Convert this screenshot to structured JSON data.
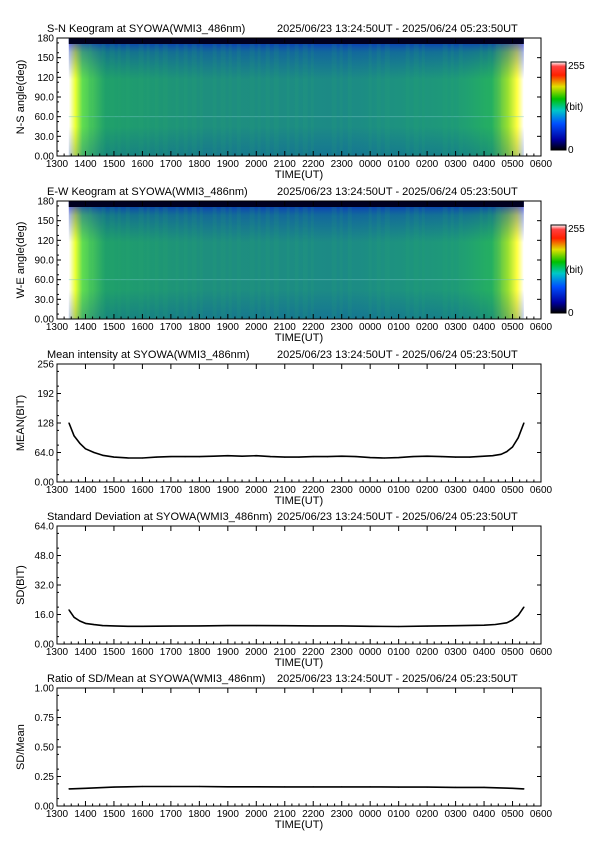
{
  "time_axis": {
    "label": "TIME(UT)",
    "ticks": [
      "1300",
      "1400",
      "1500",
      "1600",
      "1700",
      "1800",
      "1900",
      "2000",
      "2100",
      "2200",
      "2300",
      "0000",
      "0100",
      "0200",
      "0300",
      "0400",
      "0500",
      "0600"
    ]
  },
  "colorbar": {
    "max_label": "255",
    "unit_label": "(bit)",
    "min_label": "0"
  },
  "colors": {
    "line": "#000000",
    "background": "#ffffff"
  },
  "chart_data": [
    {
      "id": "sn",
      "type": "heatmap",
      "title": "S-N Keogram at SYOWA(WMI3_486nm)",
      "period": "2025/06/23 13:24:50UT - 2025/06/24 05:23:50UT",
      "xlabel": "TIME(UT)",
      "ylabel": "N-S angle(deg)",
      "yticks": [
        "0.00",
        "30.0",
        "60.0",
        "90.0",
        "120",
        "150",
        "180"
      ],
      "ylim": [
        0,
        180
      ],
      "xlim": [
        "1300",
        "0600"
      ],
      "data_range": [
        "13:24:50",
        "05:23:50"
      ],
      "colorbar_range": [
        0,
        255
      ],
      "colorbar_unit": "(bit)"
    },
    {
      "id": "ew",
      "type": "heatmap",
      "title": "E-W Keogram at SYOWA(WMI3_486nm)",
      "period": "2025/06/23 13:24:50UT - 2025/06/24 05:23:50UT",
      "xlabel": "TIME(UT)",
      "ylabel": "W-E angle(deg)",
      "yticks": [
        "0.00",
        "30.0",
        "60.0",
        "90.0",
        "120",
        "150",
        "180"
      ],
      "ylim": [
        0,
        180
      ],
      "xlim": [
        "1300",
        "0600"
      ],
      "data_range": [
        "13:24:50",
        "05:23:50"
      ],
      "colorbar_range": [
        0,
        255
      ],
      "colorbar_unit": "(bit)"
    },
    {
      "id": "mean",
      "type": "line",
      "title": "Mean intensity at SYOWA(WMI3_486nm)",
      "period": "2025/06/23 13:24:50UT - 2025/06/24 05:23:50UT",
      "xlabel": "TIME(UT)",
      "ylabel": "MEAN(BIT)",
      "yticks": [
        "0.00",
        "64.0",
        "128",
        "192",
        "256"
      ],
      "ylim": [
        0,
        256
      ],
      "x": [
        13.42,
        13.6,
        13.8,
        14.0,
        14.3,
        14.6,
        15.0,
        15.5,
        16.0,
        16.5,
        17.0,
        17.5,
        18.0,
        18.5,
        19.0,
        19.5,
        20.0,
        20.5,
        21.0,
        21.5,
        22.0,
        22.5,
        23.0,
        23.5,
        24.0,
        24.5,
        25.0,
        25.5,
        26.0,
        26.5,
        27.0,
        27.5,
        28.0,
        28.3,
        28.6,
        28.8,
        29.0,
        29.2,
        29.4
      ],
      "y": [
        128,
        100,
        84,
        72,
        64,
        58,
        54,
        52,
        52,
        54,
        55,
        55,
        55,
        56,
        57,
        56,
        57,
        55,
        54,
        54,
        55,
        55,
        56,
        55,
        53,
        52,
        53,
        55,
        56,
        55,
        54,
        54,
        56,
        57,
        60,
        66,
        76,
        96,
        128
      ]
    },
    {
      "id": "sd",
      "type": "line",
      "title": "Standard Deviation at SYOWA(WMI3_486nm)",
      "period": "2025/06/23 13:24:50UT - 2025/06/24 05:23:50UT",
      "xlabel": "TIME(UT)",
      "ylabel": "SD(BIT)",
      "yticks": [
        "0.00",
        "16.0",
        "32.0",
        "48.0",
        "64.0"
      ],
      "ylim": [
        0,
        64
      ],
      "x": [
        13.42,
        13.6,
        13.8,
        14.0,
        14.3,
        14.6,
        15.0,
        15.5,
        16.0,
        17.0,
        18.0,
        19.0,
        20.0,
        21.0,
        22.0,
        23.0,
        24.0,
        25.0,
        26.0,
        27.0,
        28.0,
        28.4,
        28.8,
        29.0,
        29.2,
        29.4
      ],
      "y": [
        18.5,
        14.5,
        12.5,
        11.2,
        10.5,
        10.0,
        9.8,
        9.6,
        9.6,
        9.7,
        9.8,
        10.0,
        10.0,
        9.9,
        9.8,
        9.8,
        9.6,
        9.5,
        9.7,
        9.9,
        10.2,
        10.6,
        11.5,
        13,
        15.5,
        20
      ]
    },
    {
      "id": "ratio",
      "type": "line",
      "title": "Ratio of SD/Mean at SYOWA(WMI3_486nm)",
      "period": "2025/06/23 13:24:50UT - 2025/06/24 05:23:50UT",
      "xlabel": "TIME(UT)",
      "ylabel": "SD/Mean",
      "yticks": [
        "0.00",
        "0.25",
        "0.50",
        "0.75",
        "1.00"
      ],
      "ylim": [
        0,
        1.0
      ],
      "x": [
        13.42,
        14.0,
        15.0,
        16.0,
        17.0,
        18.0,
        19.0,
        20.0,
        21.0,
        22.0,
        23.0,
        24.0,
        25.0,
        26.0,
        27.0,
        28.0,
        29.0,
        29.4
      ],
      "y": [
        0.145,
        0.15,
        0.16,
        0.165,
        0.165,
        0.165,
        0.163,
        0.163,
        0.162,
        0.162,
        0.162,
        0.162,
        0.16,
        0.16,
        0.158,
        0.158,
        0.15,
        0.145
      ]
    }
  ]
}
